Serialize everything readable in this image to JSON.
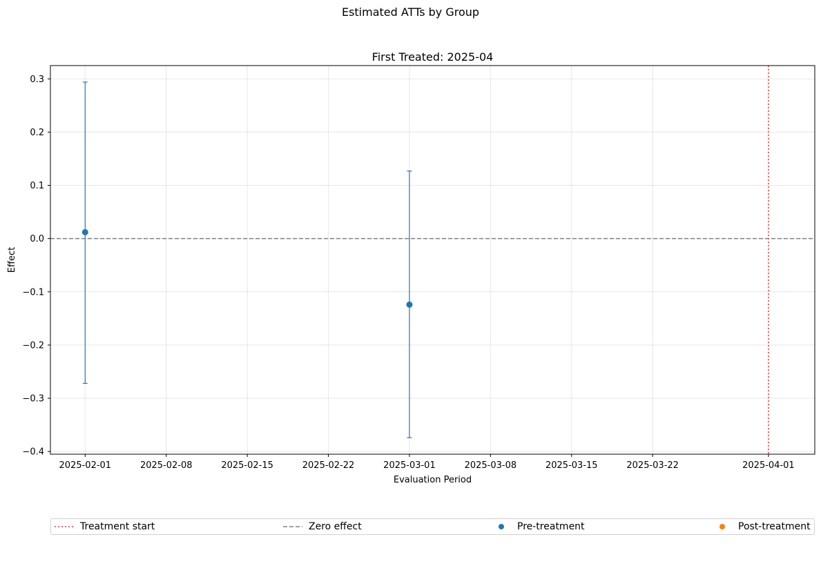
{
  "figure_title": "Estimated ATTs by Group",
  "chart_data": {
    "type": "scatter",
    "title": "First Treated: 2025-04",
    "xlabel": "Evaluation Period",
    "ylabel": "Effect",
    "x_axis_type": "date",
    "xlim": [
      "2025-01-29",
      "2025-04-05"
    ],
    "ylim": [
      -0.405,
      0.325
    ],
    "x_ticks": [
      "2025-02-01",
      "2025-02-08",
      "2025-02-15",
      "2025-02-22",
      "2025-03-01",
      "2025-03-08",
      "2025-03-15",
      "2025-03-22",
      "2025-04-01"
    ],
    "y_ticks": [
      -0.4,
      -0.3,
      -0.2,
      -0.1,
      0.0,
      0.1,
      0.2,
      0.3
    ],
    "y_tick_labels": [
      "−0.4",
      "−0.3",
      "−0.2",
      "−0.1",
      "0.0",
      "0.1",
      "0.2",
      "0.3"
    ],
    "grid": true,
    "series": [
      {
        "name": "Pre-treatment",
        "color": "#1f77b4",
        "points": [
          {
            "x": "2025-02-01",
            "y": 0.012,
            "ci_low": -0.272,
            "ci_high": 0.294
          },
          {
            "x": "2025-03-01",
            "y": -0.124,
            "ci_low": -0.374,
            "ci_high": 0.127
          }
        ]
      },
      {
        "name": "Post-treatment",
        "color": "#ff7f0e",
        "points": []
      }
    ],
    "reference_lines": [
      {
        "name": "Treatment start",
        "orientation": "vertical",
        "value": "2025-04-01",
        "color": "#ff0000",
        "style": "dotted"
      },
      {
        "name": "Zero effect",
        "orientation": "horizontal",
        "value": 0.0,
        "color": "#808080",
        "style": "dashed"
      }
    ],
    "legend": {
      "placement": "bottom",
      "entries": [
        "Treatment start",
        "Zero effect",
        "Pre-treatment",
        "Post-treatment"
      ]
    }
  }
}
